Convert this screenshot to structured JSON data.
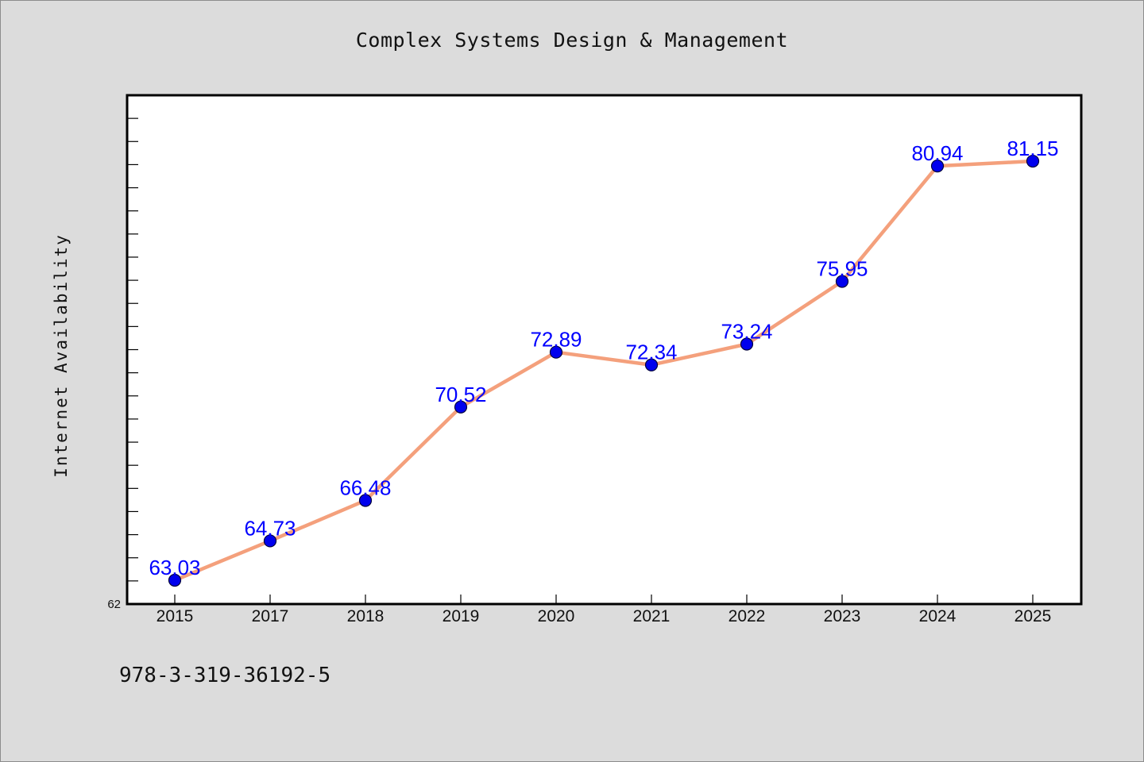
{
  "chart_data": {
    "type": "line",
    "title": "Complex Systems Design & Management",
    "xlabel": "",
    "ylabel": "Internet Availability",
    "categories": [
      "2015",
      "2017",
      "2018",
      "2019",
      "2020",
      "2021",
      "2022",
      "2023",
      "2024",
      "2025"
    ],
    "series": [
      {
        "values": [
          63.03,
          64.73,
          66.48,
          70.52,
          72.89,
          72.34,
          73.24,
          75.95,
          80.94,
          81.15
        ],
        "line_color": "#f4a07c",
        "marker_color": "#0000ee"
      }
    ],
    "ylim": [
      62,
      84
    ],
    "y_tick_labels": [
      "62"
    ],
    "grid": false,
    "legend": "none",
    "data_labels": true,
    "data_label_color": "#0000ff"
  },
  "footer": {
    "text": "978-3-319-36192-5"
  },
  "colors": {
    "background": "#dcdcdc",
    "plot_background": "#ffffff"
  }
}
